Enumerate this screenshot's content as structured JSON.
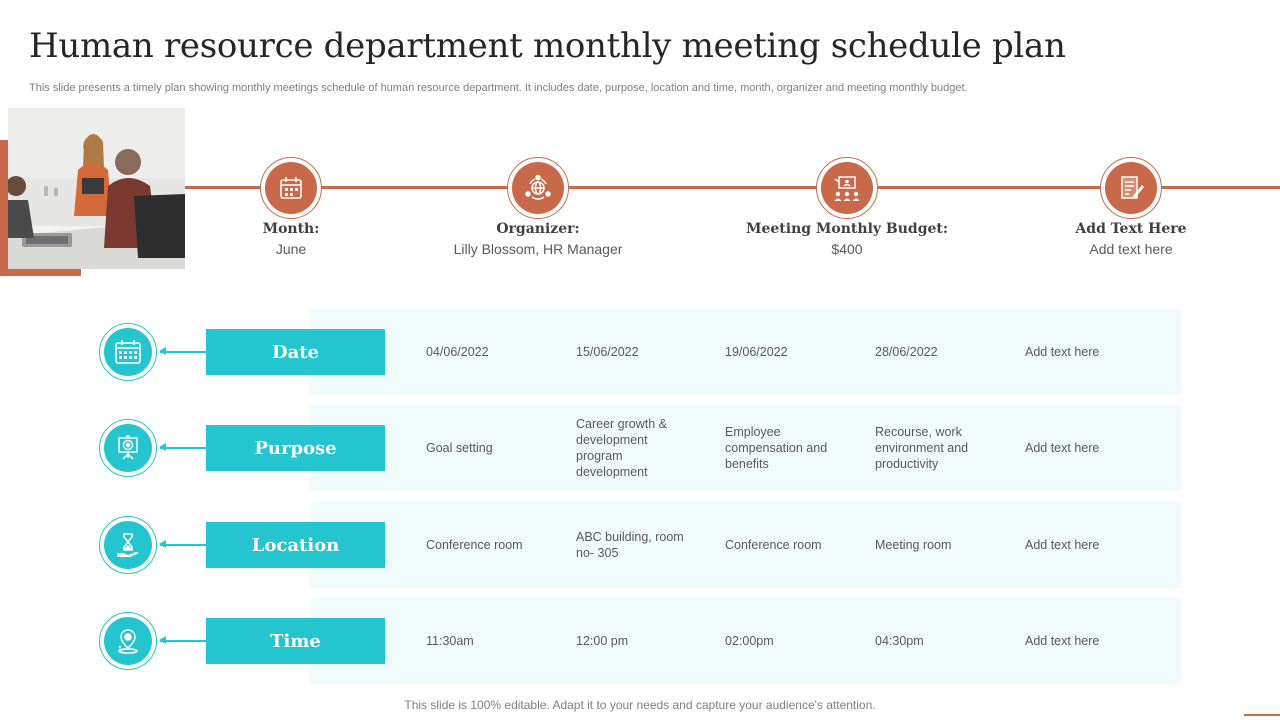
{
  "title": "Human resource department monthly meeting schedule plan",
  "subtitle": "This slide presents a timely plan showing  monthly meetings schedule of human resource department. It includes date, purpose, location and time, month, organizer and meeting monthly budget.",
  "colors": {
    "accent": "#c8694a",
    "teal": "#25c5cf",
    "row_bg": "#f1fbfc"
  },
  "milestones": [
    {
      "icon": "calendar-icon",
      "label": "Month:",
      "value": "June"
    },
    {
      "icon": "network-icon",
      "label": "Organizer:",
      "value": "Lilly Blossom, HR Manager"
    },
    {
      "icon": "presentation-meeting-icon",
      "label": "Meeting Monthly Budget:",
      "value": "$400"
    },
    {
      "icon": "document-edit-icon",
      "label": "Add Text Here",
      "value": "Add text here"
    }
  ],
  "rows": [
    {
      "icon": "calendar-icon",
      "label": "Date",
      "cells": [
        "04/06/2022",
        "15/06/2022",
        "19/06/2022",
        "28/06/2022",
        "Add text here"
      ]
    },
    {
      "icon": "target-board-icon",
      "label": "Purpose",
      "cells": [
        "Goal setting",
        "Career growth & development program development",
        "Employee compensation and benefits",
        "Recourse, work environment and productivity",
        "Add text here"
      ]
    },
    {
      "icon": "hourglass-hand-icon",
      "label": "Location",
      "cells": [
        "Conference  room",
        "ABC building, room no- 305",
        "Conference  room",
        "Meeting room",
        "Add text here"
      ]
    },
    {
      "icon": "location-pin-icon",
      "label": "Time",
      "cells": [
        "11:30am",
        "12:00  pm",
        "02:00pm",
        "04:30pm",
        "Add text here"
      ]
    }
  ],
  "footer": "This slide is 100% editable. Adapt it to your needs and capture your audience's attention."
}
